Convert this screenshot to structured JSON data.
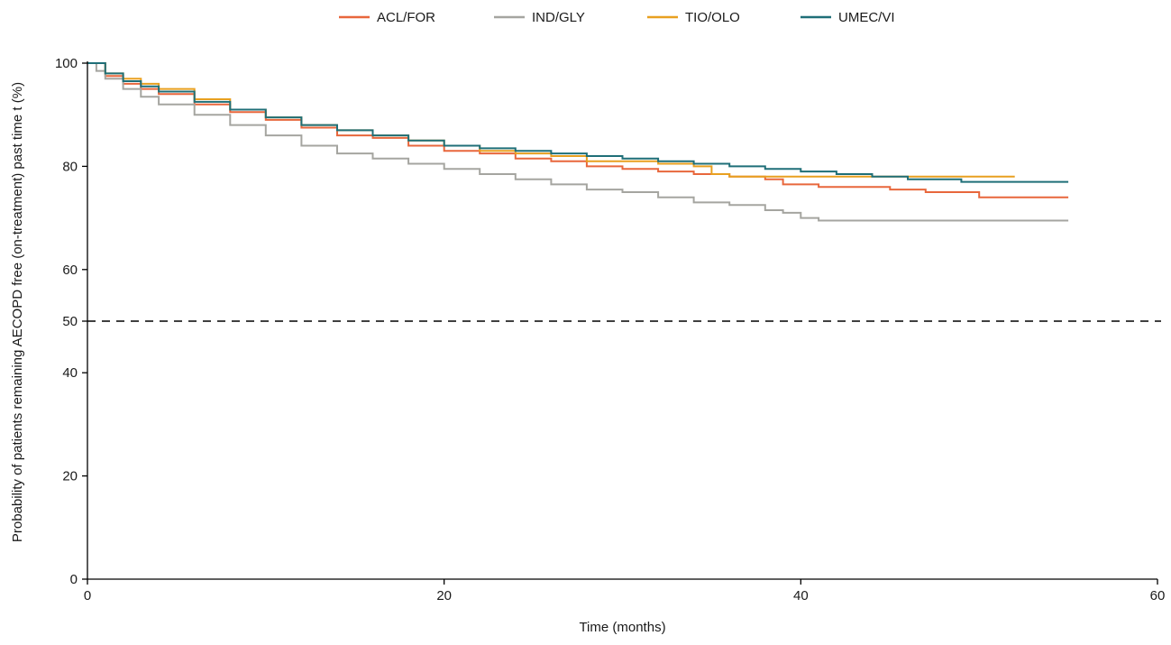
{
  "chart_data": {
    "type": "line",
    "title": "",
    "xlabel": "Time (months)",
    "ylabel": "Probability of patients remaining AECOPD free (on-treatment) past time t (%)",
    "xlim": [
      0,
      60
    ],
    "ylim": [
      0,
      100
    ],
    "xticks": [
      0,
      20,
      40,
      60
    ],
    "yticks": [
      0,
      20,
      40,
      50,
      60,
      80,
      100
    ],
    "grid": false,
    "legend_position": "top",
    "reference_line": {
      "y": 50,
      "style": "dashed",
      "color": "#000000"
    },
    "series": [
      {
        "name": "ACL/FOR",
        "color": "#e8673c",
        "x": [
          0,
          1,
          2,
          3,
          4,
          6,
          8,
          10,
          12,
          14,
          16,
          18,
          20,
          22,
          24,
          26,
          28,
          30,
          32,
          34,
          36,
          38,
          39,
          41,
          43,
          45,
          47,
          50,
          55
        ],
        "y": [
          100,
          97.5,
          96,
          95,
          94,
          92,
          90.5,
          89,
          87.5,
          86,
          85.5,
          84,
          83,
          82.5,
          81.5,
          81,
          80,
          79.5,
          79,
          78.5,
          78,
          77.5,
          76.5,
          76,
          76,
          75.5,
          75,
          74,
          74
        ]
      },
      {
        "name": "IND/GLY",
        "color": "#a5a5a0",
        "x": [
          0,
          0.5,
          1,
          2,
          3,
          4,
          6,
          8,
          10,
          12,
          14,
          16,
          18,
          20,
          22,
          24,
          26,
          28,
          30,
          32,
          34,
          36,
          38,
          39,
          40,
          41,
          45,
          50,
          55
        ],
        "y": [
          100,
          98.5,
          97,
          95,
          93.5,
          92,
          90,
          88,
          86,
          84,
          82.5,
          81.5,
          80.5,
          79.5,
          78.5,
          77.5,
          76.5,
          75.5,
          75,
          74,
          73,
          72.5,
          71.5,
          71,
          70,
          69.5,
          69.5,
          69.5,
          69.5
        ]
      },
      {
        "name": "TIO/OLO",
        "color": "#e8a020",
        "x": [
          0,
          1,
          2,
          3,
          4,
          6,
          8,
          10,
          12,
          14,
          16,
          18,
          20,
          22,
          24,
          26,
          28,
          30,
          32,
          34,
          35,
          36,
          38,
          40,
          45,
          48,
          52
        ],
        "y": [
          100,
          98,
          97,
          96,
          95,
          93,
          91,
          89.5,
          88,
          87,
          86,
          85,
          84,
          83,
          82.5,
          82,
          81,
          81,
          80.5,
          80,
          78.5,
          78,
          78,
          78,
          78,
          78,
          78
        ]
      },
      {
        "name": "UMEC/VI",
        "color": "#1f6f78",
        "x": [
          0,
          1,
          2,
          3,
          4,
          6,
          8,
          10,
          12,
          14,
          16,
          18,
          20,
          22,
          24,
          26,
          28,
          30,
          32,
          34,
          36,
          38,
          40,
          42,
          44,
          46,
          49,
          55
        ],
        "y": [
          100,
          98,
          96.5,
          95.5,
          94.5,
          92.5,
          91,
          89.5,
          88,
          87,
          86,
          85,
          84,
          83.5,
          83,
          82.5,
          82,
          81.5,
          81,
          80.5,
          80,
          79.5,
          79,
          78.5,
          78,
          77.5,
          77,
          77
        ]
      }
    ]
  }
}
